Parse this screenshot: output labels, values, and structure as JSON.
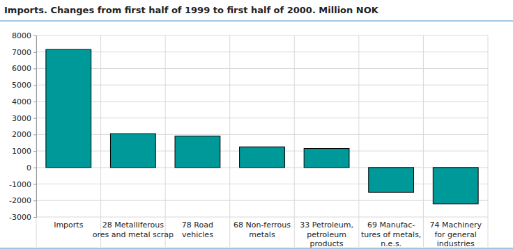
{
  "chart_data": {
    "type": "bar",
    "title": "Imports. Changes from first half of 1999 to first half of 2000. Million NOK",
    "categories": [
      "Imports",
      "28  Metalliferous\nores and metal scrap",
      "78  Road\nvehicles",
      "68  Non-ferrous\nmetals",
      "33  Petroleum,\npetroleum\nproducts",
      "69  Manufac-\ntures of metals,\nn.e.s.",
      "74  Machinery\nfor general\nindustries"
    ],
    "values": [
      7150,
      2050,
      1900,
      1250,
      1150,
      -1500,
      -2200
    ],
    "color": "#009999",
    "ylim": [
      -3000,
      8000
    ],
    "yticks": [
      -3000,
      -2000,
      -1000,
      0,
      1000,
      2000,
      3000,
      4000,
      5000,
      6000,
      7000,
      8000
    ],
    "grid": true
  }
}
